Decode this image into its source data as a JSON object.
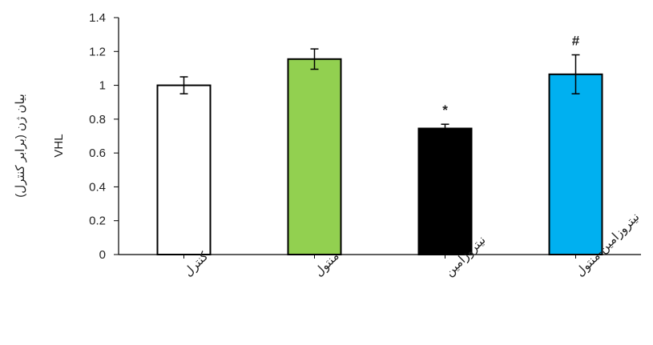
{
  "chart_data": {
    "type": "bar",
    "categories": [
      "کنترل",
      "منتول",
      "نیتروزامین",
      "نیتروزامین-منتول"
    ],
    "values": [
      1.0,
      1.155,
      0.745,
      1.065
    ],
    "errors": [
      0.05,
      0.06,
      0.025,
      0.115
    ],
    "annotations": [
      "",
      "",
      "*",
      "#"
    ],
    "bar_colors": [
      "#ffffff",
      "#92d050",
      "#000000",
      "#00b0f0"
    ],
    "bar_stroke": "#000000",
    "ylabel_line1": "بیان ژن (برابر کنترل)",
    "ylabel_line2": "VHL",
    "ylim": [
      0,
      1.4
    ],
    "yticks": [
      0,
      0.2,
      0.4,
      0.6,
      0.8,
      1,
      1.2,
      1.4
    ],
    "grid": false
  }
}
